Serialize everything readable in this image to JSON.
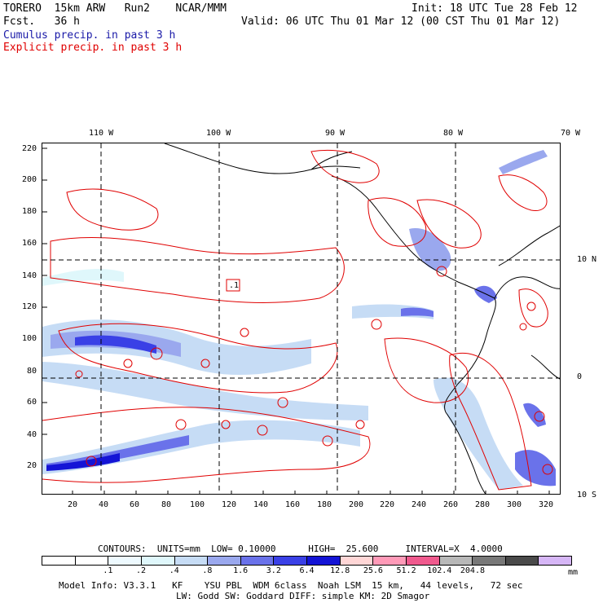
{
  "header": {
    "model": "TORERO  15km ARW   Run2    NCAR/MMM",
    "fcst": "Fcst.   36 h",
    "init": "Init: 18 UTC Tue 28 Feb 12",
    "valid": "Valid: 06 UTC Thu 01 Mar 12 (00 CST Thu 01 Mar 12)",
    "field_cumulus": "Cumulus precip. in past 3 h",
    "field_explicit": "Explicit precip. in past 3 h"
  },
  "map": {
    "top_lon_labels": [
      "110 W",
      "100 W",
      "90 W",
      "80 W",
      "70 W"
    ],
    "right_lat_labels": [
      "10 N",
      "0",
      "10 S"
    ],
    "left_ticks": [
      "220",
      "200",
      "180",
      "160",
      "140",
      "120",
      "100",
      "80",
      "60",
      "40",
      "20"
    ],
    "bottom_ticks": [
      "20",
      "40",
      "60",
      "80",
      "100",
      "120",
      "140",
      "160",
      "180",
      "200",
      "220",
      "240",
      "260",
      "280",
      "300",
      "320"
    ],
    "low_marker": ".1"
  },
  "contours": {
    "text": "CONTOURS:  UNITS=mm  LOW= 0.10000      HIGH=  25.600     INTERVAL=X  4.0000"
  },
  "colorbar": {
    "colors": [
      "#ffffff",
      "#ffffff",
      "#eefaff",
      "#dff7fb",
      "#c6dcf5",
      "#9aa8ee",
      "#6a72ea",
      "#3a40e6",
      "#1414d6",
      "#ffd6d6",
      "#ff9ab8",
      "#f05a8e",
      "#b8b8b8",
      "#787878",
      "#4a4a4a",
      "#d6b6f6"
    ],
    "labels": [
      ".1",
      ".2",
      ".4",
      ".8",
      "1.6",
      "3.2",
      "6.4",
      "12.8",
      "25.6",
      "51.2",
      "102.4",
      "204.8"
    ],
    "units": "mm"
  },
  "footer": {
    "line1": "Model Info: V3.3.1   KF    YSU PBL  WDM 6class  Noah LSM  15 km,   44 levels,   72 sec",
    "line2": "LW: Godd SW: Goddard DIFF: simple KM: 2D Smagor"
  }
}
